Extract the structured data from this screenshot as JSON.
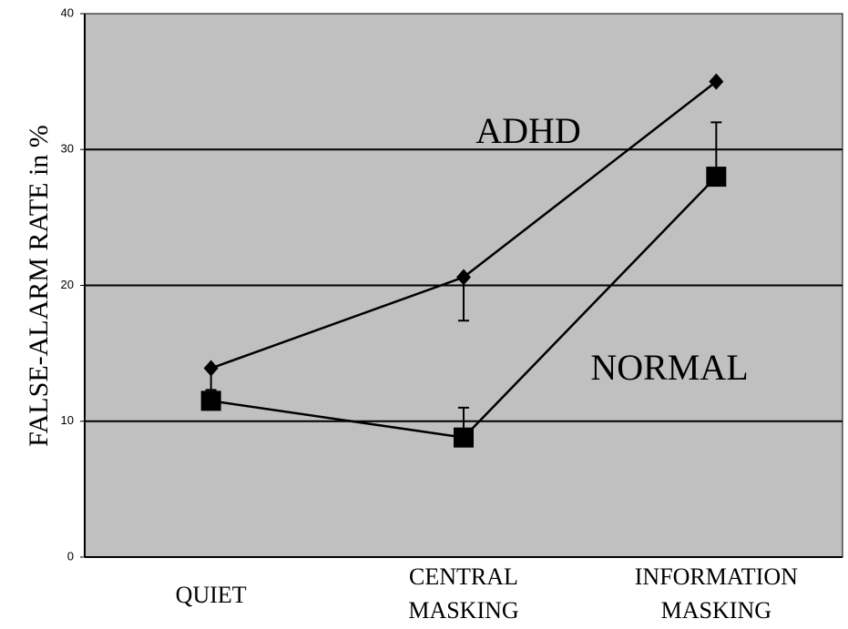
{
  "chart_data": {
    "type": "line",
    "y_label": "FALSE-ALARM RATE in %",
    "categories": [
      "QUIET",
      "CENTRAL MASKING",
      "INFORMATION MASKING"
    ],
    "series": [
      {
        "name": "ADHD",
        "color": "#000000",
        "marker": "diamond",
        "values": [
          13.9,
          20.6,
          35
        ],
        "errors": [
          1.6,
          3.2,
          null
        ],
        "error_direction": "down"
      },
      {
        "name": "NORMAL",
        "color": "#000000",
        "marker": "square",
        "values": [
          11.5,
          8.8,
          28
        ],
        "errors": [
          null,
          2.2,
          4
        ],
        "error_direction": "up"
      }
    ],
    "ylim": [
      0,
      40
    ],
    "yticks": [
      0,
      10,
      20,
      30,
      40
    ],
    "grid": true,
    "background": "#c0c0c0"
  }
}
